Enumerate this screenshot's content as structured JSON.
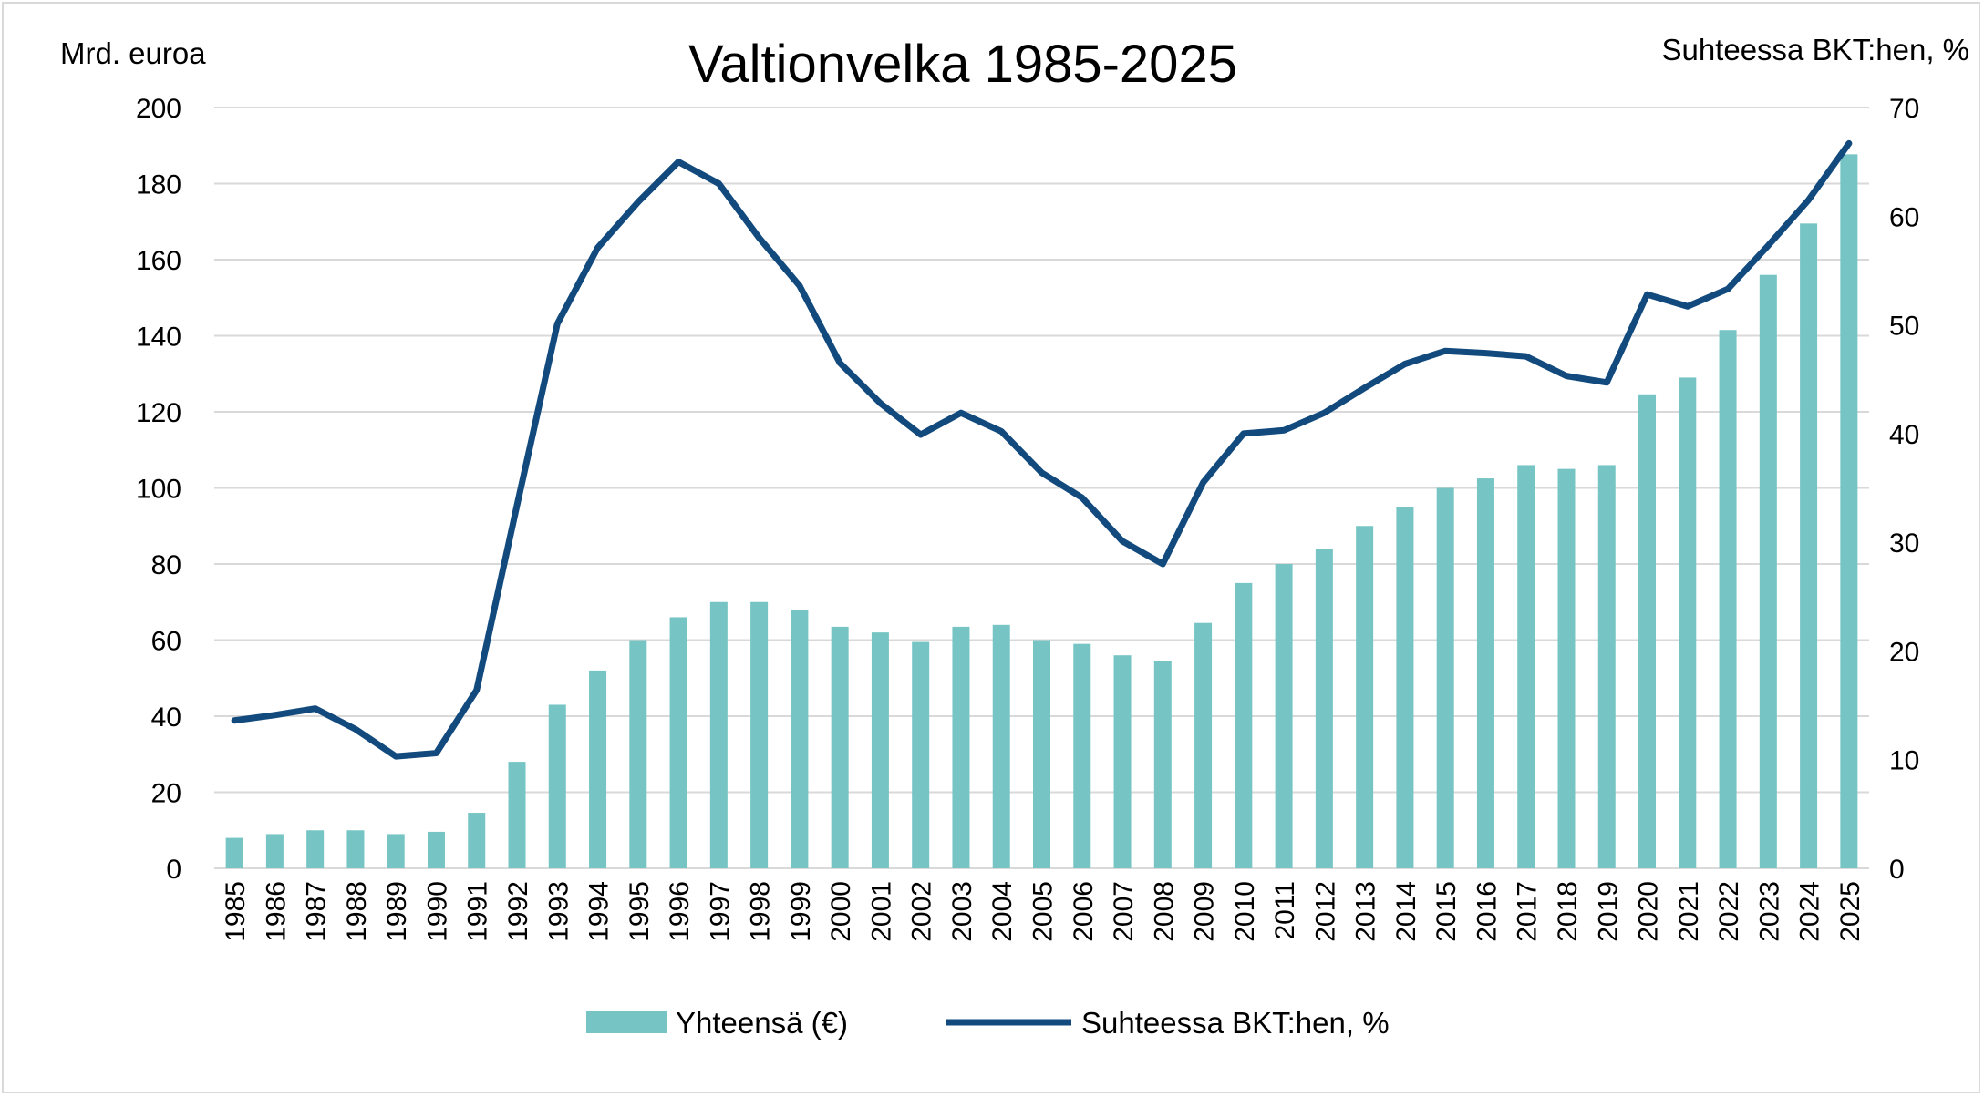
{
  "chart_data": {
    "type": "bar+line",
    "title": "Valtionvelka 1985-2025",
    "ylabel_left": "Mrd. euroa",
    "ylabel_right": "Suhteessa BKT:hen, %",
    "ylim_left": [
      0,
      200
    ],
    "ylim_right": [
      0,
      70
    ],
    "yticks_left": [
      "0",
      "20",
      "40",
      "60",
      "80",
      "100",
      "120",
      "140",
      "160",
      "180",
      "200"
    ],
    "yticks_right": [
      "0",
      "10",
      "20",
      "30",
      "40",
      "50",
      "60",
      "70"
    ],
    "grid": true,
    "legend_position": "bottom",
    "categories": [
      "1985",
      "1986",
      "1987",
      "1988",
      "1989",
      "1990",
      "1991",
      "1992",
      "1993",
      "1994",
      "1995",
      "1996",
      "1997",
      "1998",
      "1999",
      "2000",
      "2001",
      "2002",
      "2003",
      "2004",
      "2005",
      "2006",
      "2007",
      "2008",
      "2009",
      "2010",
      "2011",
      "2012",
      "2013",
      "2014",
      "2015",
      "2016",
      "2017",
      "2018",
      "2019",
      "2020",
      "2021",
      "2022",
      "2023",
      "2024",
      "2025"
    ],
    "series": [
      {
        "name": "Yhteensä (€)",
        "type": "bar",
        "axis": "left",
        "color": "#76c5c4",
        "values": [
          8,
          9,
          10,
          10,
          9,
          9.6,
          14.6,
          28,
          43,
          52,
          60,
          66,
          70,
          70,
          68,
          63.5,
          62,
          59.5,
          63.5,
          64,
          60,
          59,
          56,
          54.5,
          64.5,
          75,
          80,
          84,
          90,
          95,
          100,
          102.5,
          106,
          105,
          106,
          124.6,
          129,
          141.5,
          156,
          169.5,
          187.7
        ]
      },
      {
        "name": "Suhteessa BKT:hen, %",
        "type": "line",
        "axis": "right",
        "color": "#124a7e",
        "values": [
          13.6,
          14.1,
          14.7,
          12.8,
          10.3,
          10.6,
          16.4,
          33.4,
          50.1,
          57.1,
          61.3,
          65,
          63,
          58,
          53.6,
          46.5,
          42.8,
          39.9,
          41.9,
          40.2,
          36.4,
          34.1,
          30.1,
          28,
          35.5,
          40,
          40.3,
          41.9,
          44.2,
          46.4,
          47.6,
          47.4,
          47.1,
          45.3,
          44.7,
          52.8,
          51.7,
          53.3,
          57.3,
          61.5,
          66.7
        ]
      }
    ]
  }
}
